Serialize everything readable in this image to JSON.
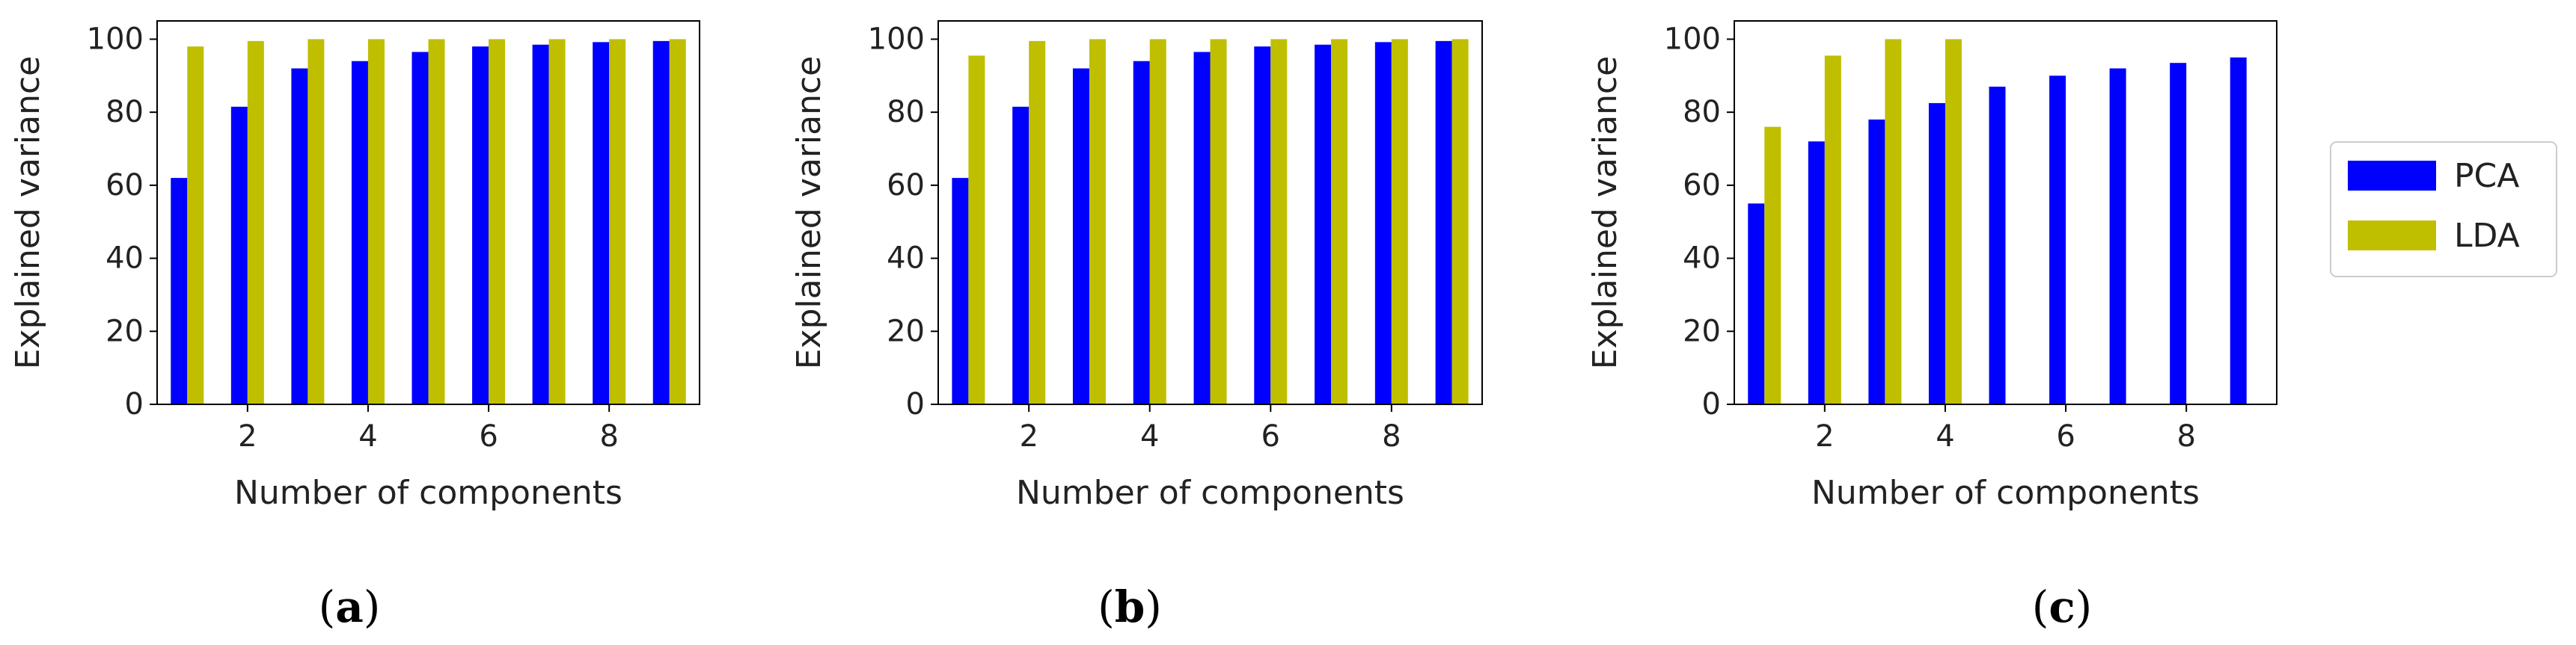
{
  "chart_data": [
    {
      "type": "bar",
      "panel_label": "a",
      "x": [
        1,
        2,
        3,
        4,
        5,
        6,
        7,
        8,
        9
      ],
      "series": [
        {
          "name": "PCA",
          "values": [
            62,
            81.5,
            92,
            94,
            96.5,
            98,
            98.5,
            99.2,
            99.5
          ]
        },
        {
          "name": "LDA",
          "values": [
            98,
            99.5,
            100,
            100,
            100,
            100,
            100,
            100,
            100
          ]
        }
      ],
      "xlabel": "Number of components",
      "ylabel": "Explained variance",
      "xticks": [
        2,
        4,
        6,
        8
      ],
      "yticks": [
        0,
        20,
        40,
        60,
        80,
        100
      ],
      "xlim": [
        0.5,
        9.5
      ],
      "ylim": [
        0,
        105
      ],
      "grid": false
    },
    {
      "type": "bar",
      "panel_label": "b",
      "x": [
        1,
        2,
        3,
        4,
        5,
        6,
        7,
        8,
        9
      ],
      "series": [
        {
          "name": "PCA",
          "values": [
            62,
            81.5,
            92,
            94,
            96.5,
            98,
            98.5,
            99.2,
            99.5
          ]
        },
        {
          "name": "LDA",
          "values": [
            95.5,
            99.5,
            100,
            100,
            100,
            100,
            100,
            100,
            100
          ]
        }
      ],
      "xlabel": "Number of components",
      "ylabel": "Explained variance",
      "xticks": [
        2,
        4,
        6,
        8
      ],
      "yticks": [
        0,
        20,
        40,
        60,
        80,
        100
      ],
      "xlim": [
        0.5,
        9.5
      ],
      "ylim": [
        0,
        105
      ],
      "grid": false
    },
    {
      "type": "bar",
      "panel_label": "c",
      "x": [
        1,
        2,
        3,
        4,
        5,
        6,
        7,
        8,
        9
      ],
      "series": [
        {
          "name": "PCA",
          "values": [
            55,
            72,
            78,
            82.5,
            87,
            90,
            92,
            93.5,
            95
          ]
        },
        {
          "name": "LDA",
          "values": [
            76,
            95.5,
            100,
            100,
            null,
            null,
            null,
            null,
            null
          ]
        }
      ],
      "xlabel": "Number of components",
      "ylabel": "Explained variance",
      "xticks": [
        2,
        4,
        6,
        8
      ],
      "yticks": [
        0,
        20,
        40,
        60,
        80,
        100
      ],
      "xlim": [
        0.5,
        9.5
      ],
      "ylim": [
        0,
        105
      ],
      "grid": false
    }
  ],
  "legend": {
    "placement": "right",
    "items": [
      {
        "label": "PCA",
        "color": "#0000ff"
      },
      {
        "label": "LDA",
        "color": "#bfbf00"
      }
    ]
  },
  "colors": {
    "PCA": "#0000ff",
    "LDA": "#bfbf00"
  },
  "captions": [
    "(a)",
    "(b)",
    "(c)"
  ]
}
